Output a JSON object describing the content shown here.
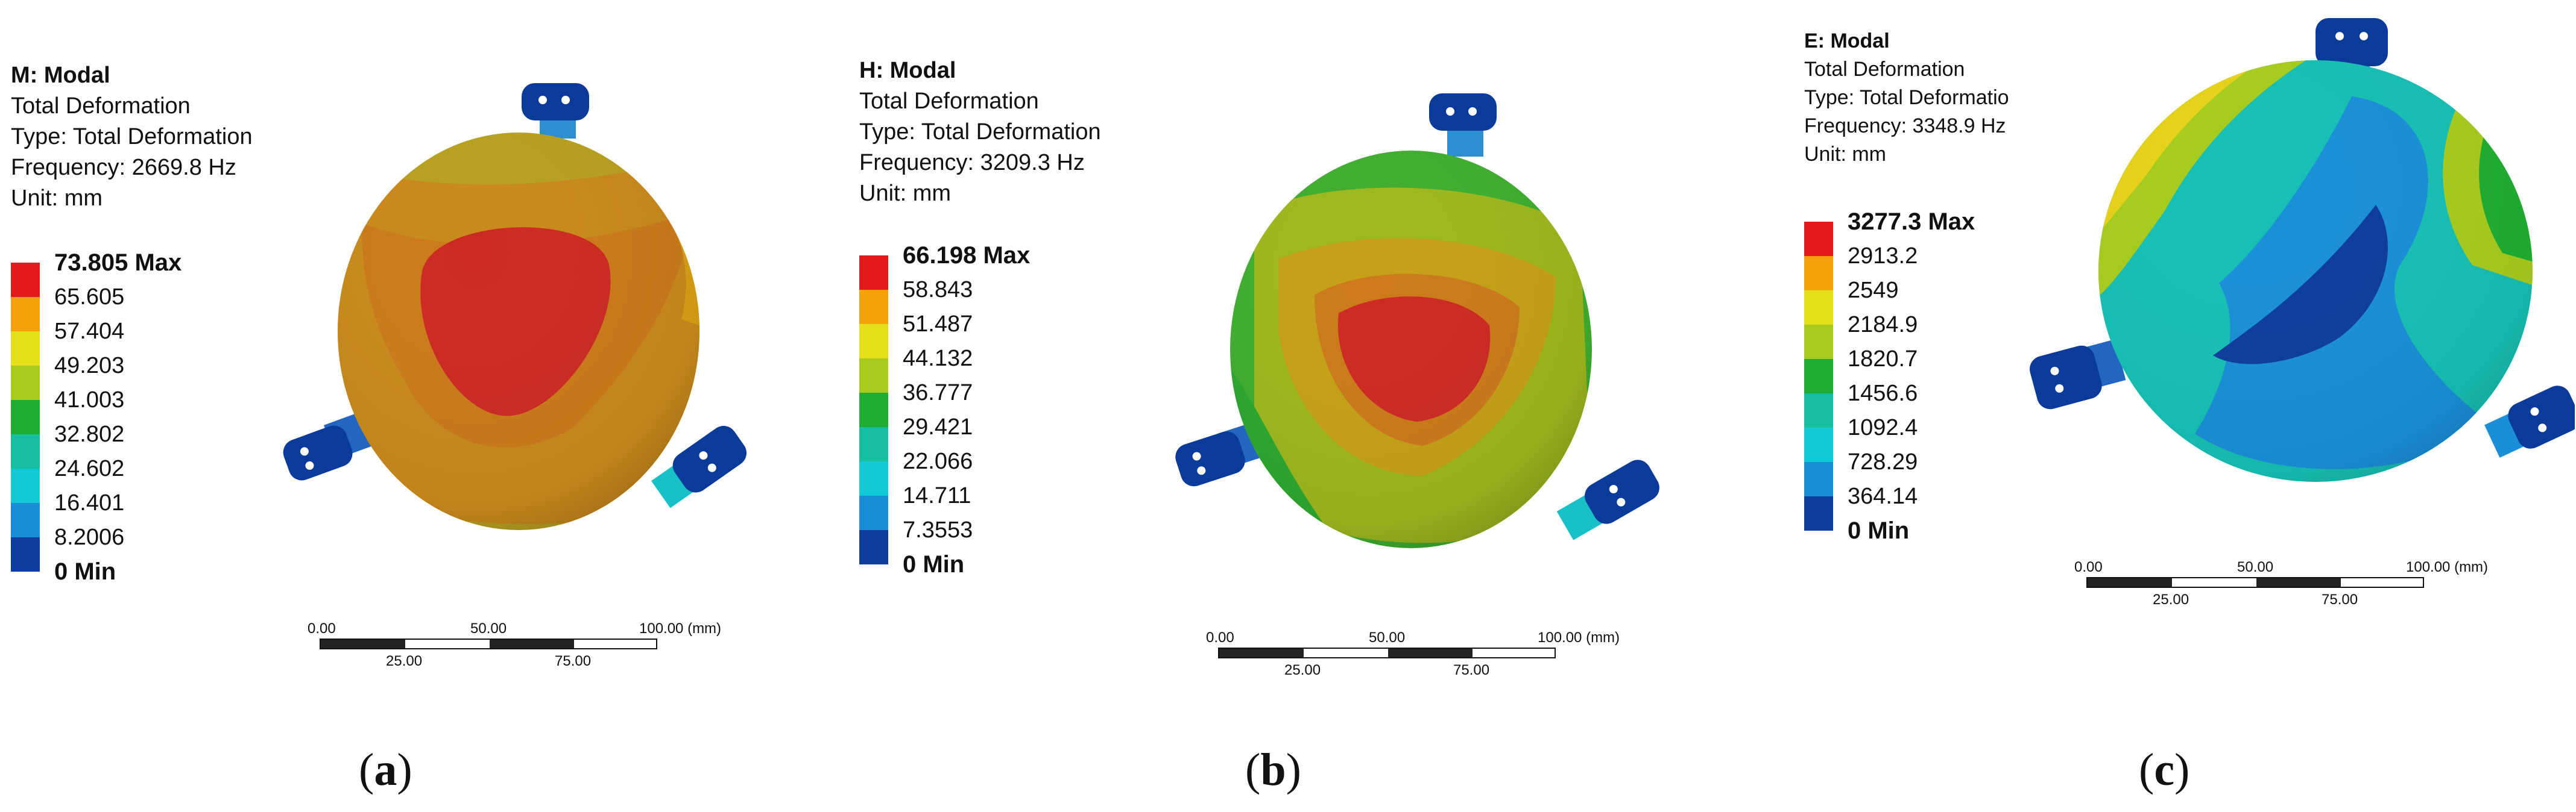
{
  "panels": [
    {
      "id": "a",
      "title": "M: Modal",
      "subtitle": "Total Deformation",
      "type_line": "Type: Total Deformation",
      "frequency": "Frequency: 2669.8 Hz",
      "unit": "Unit: mm",
      "legend": [
        "73.805 Max",
        "65.605",
        "57.404",
        "49.203",
        "41.003",
        "32.802",
        "24.602",
        "16.401",
        "8.2006",
        "0 Min"
      ],
      "scale": {
        "t0": "0.00",
        "t50": "50.00",
        "t100": "100.00 (mm)",
        "t25": "25.00",
        "t75": "75.00"
      },
      "caption": "a"
    },
    {
      "id": "b",
      "title": "H: Modal",
      "subtitle": "Total Deformation",
      "type_line": "Type: Total Deformation",
      "frequency": "Frequency: 3209.3 Hz",
      "unit": "Unit: mm",
      "legend": [
        "66.198 Max",
        "58.843",
        "51.487",
        "44.132",
        "36.777",
        "29.421",
        "22.066",
        "14.711",
        "7.3553",
        "0 Min"
      ],
      "scale": {
        "t0": "0.00",
        "t50": "50.00",
        "t100": "100.00 (mm)",
        "t25": "25.00",
        "t75": "75.00"
      },
      "caption": "b"
    },
    {
      "id": "c",
      "title": "E: Modal",
      "subtitle": "Total Deformation",
      "type_line": "Type: Total Deformatio",
      "frequency": "Frequency: 3348.9 Hz",
      "unit": "Unit: mm",
      "legend": [
        "3277.3 Max",
        "2913.2",
        "2549",
        "2184.9",
        "1820.7",
        "1456.6",
        "1092.4",
        "728.29",
        "364.14",
        "0 Min"
      ],
      "scale": {
        "t0": "0.00",
        "t50": "50.00",
        "t100": "100.00 (mm)",
        "t25": "25.00",
        "t75": "75.00"
      },
      "caption": "c"
    }
  ],
  "colors": {
    "legend": [
      "#e31a1c",
      "#f5a20a",
      "#e6e01a",
      "#a7cc1e",
      "#1fae32",
      "#17bfa0",
      "#12c9d6",
      "#1a8fd8",
      "#0d3d9e"
    ],
    "bracket": "#0a3a9a",
    "bracket_light": "#1e66c8"
  }
}
